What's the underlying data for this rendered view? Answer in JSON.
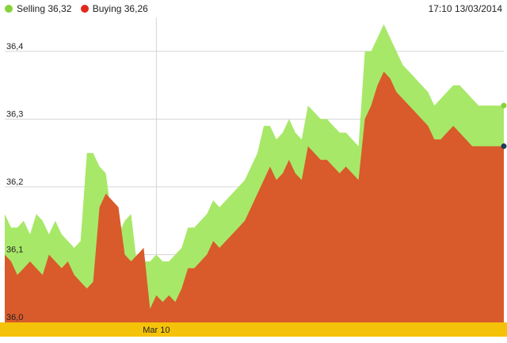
{
  "header": {
    "datetime": "17:10 13/03/2014"
  },
  "legend": [
    {
      "label": "Selling 36,32",
      "color": "#86d23a"
    },
    {
      "label": "Buying 36,26",
      "color": "#e0281c"
    }
  ],
  "colors": {
    "selling_fill": "#a8e868",
    "buying_fill": "#d95a2b",
    "time_band": "#f5c20a",
    "grid": "#d6d6d6"
  },
  "chart_data": {
    "type": "area",
    "ylim": [
      36.0,
      36.45
    ],
    "y_ticks": [
      {
        "value": 36.0,
        "label": "36,0"
      },
      {
        "value": 36.1,
        "label": "36,1"
      },
      {
        "value": 36.2,
        "label": "36,2"
      },
      {
        "value": 36.3,
        "label": "36,3"
      },
      {
        "value": 36.4,
        "label": "36,4"
      }
    ],
    "x_ticks": [
      {
        "index": 24,
        "label": "Mar 10"
      }
    ],
    "x_count": 80,
    "series": [
      {
        "name": "Selling",
        "color": "#86d23a",
        "values": [
          36.16,
          36.14,
          36.14,
          36.15,
          36.13,
          36.16,
          36.15,
          36.13,
          36.15,
          36.13,
          36.12,
          36.11,
          36.12,
          36.25,
          36.25,
          36.23,
          36.22,
          36.15,
          36.13,
          36.15,
          36.16,
          36.08,
          36.09,
          36.09,
          36.1,
          36.09,
          36.09,
          36.1,
          36.11,
          36.14,
          36.14,
          36.15,
          36.16,
          36.18,
          36.17,
          36.18,
          36.19,
          36.2,
          36.21,
          36.23,
          36.25,
          36.29,
          36.29,
          36.27,
          36.28,
          36.3,
          36.28,
          36.27,
          36.32,
          36.31,
          36.3,
          36.3,
          36.29,
          36.28,
          36.28,
          36.27,
          36.26,
          36.4,
          36.4,
          36.42,
          36.44,
          36.42,
          36.4,
          36.38,
          36.37,
          36.36,
          36.35,
          36.34,
          36.32,
          36.33,
          36.34,
          36.35,
          36.35,
          36.34,
          36.33,
          36.32,
          36.32,
          36.32,
          36.32,
          36.32
        ]
      },
      {
        "name": "Buying",
        "color": "#e0281c",
        "values": [
          36.1,
          36.09,
          36.07,
          36.08,
          36.09,
          36.08,
          36.07,
          36.1,
          36.09,
          36.08,
          36.09,
          36.07,
          36.06,
          36.05,
          36.06,
          36.17,
          36.19,
          36.18,
          36.17,
          36.1,
          36.09,
          36.1,
          36.11,
          36.02,
          36.04,
          36.03,
          36.04,
          36.03,
          36.05,
          36.08,
          36.08,
          36.09,
          36.1,
          36.12,
          36.11,
          36.12,
          36.13,
          36.14,
          36.15,
          36.17,
          36.19,
          36.21,
          36.23,
          36.21,
          36.22,
          36.24,
          36.22,
          36.21,
          36.26,
          36.25,
          36.24,
          36.24,
          36.23,
          36.22,
          36.23,
          36.22,
          36.21,
          36.3,
          36.32,
          36.35,
          36.37,
          36.36,
          36.34,
          36.33,
          36.32,
          36.31,
          36.3,
          36.29,
          36.27,
          36.27,
          36.28,
          36.29,
          36.28,
          36.27,
          36.26,
          36.26,
          36.26,
          36.26,
          36.26,
          36.26
        ]
      }
    ]
  }
}
